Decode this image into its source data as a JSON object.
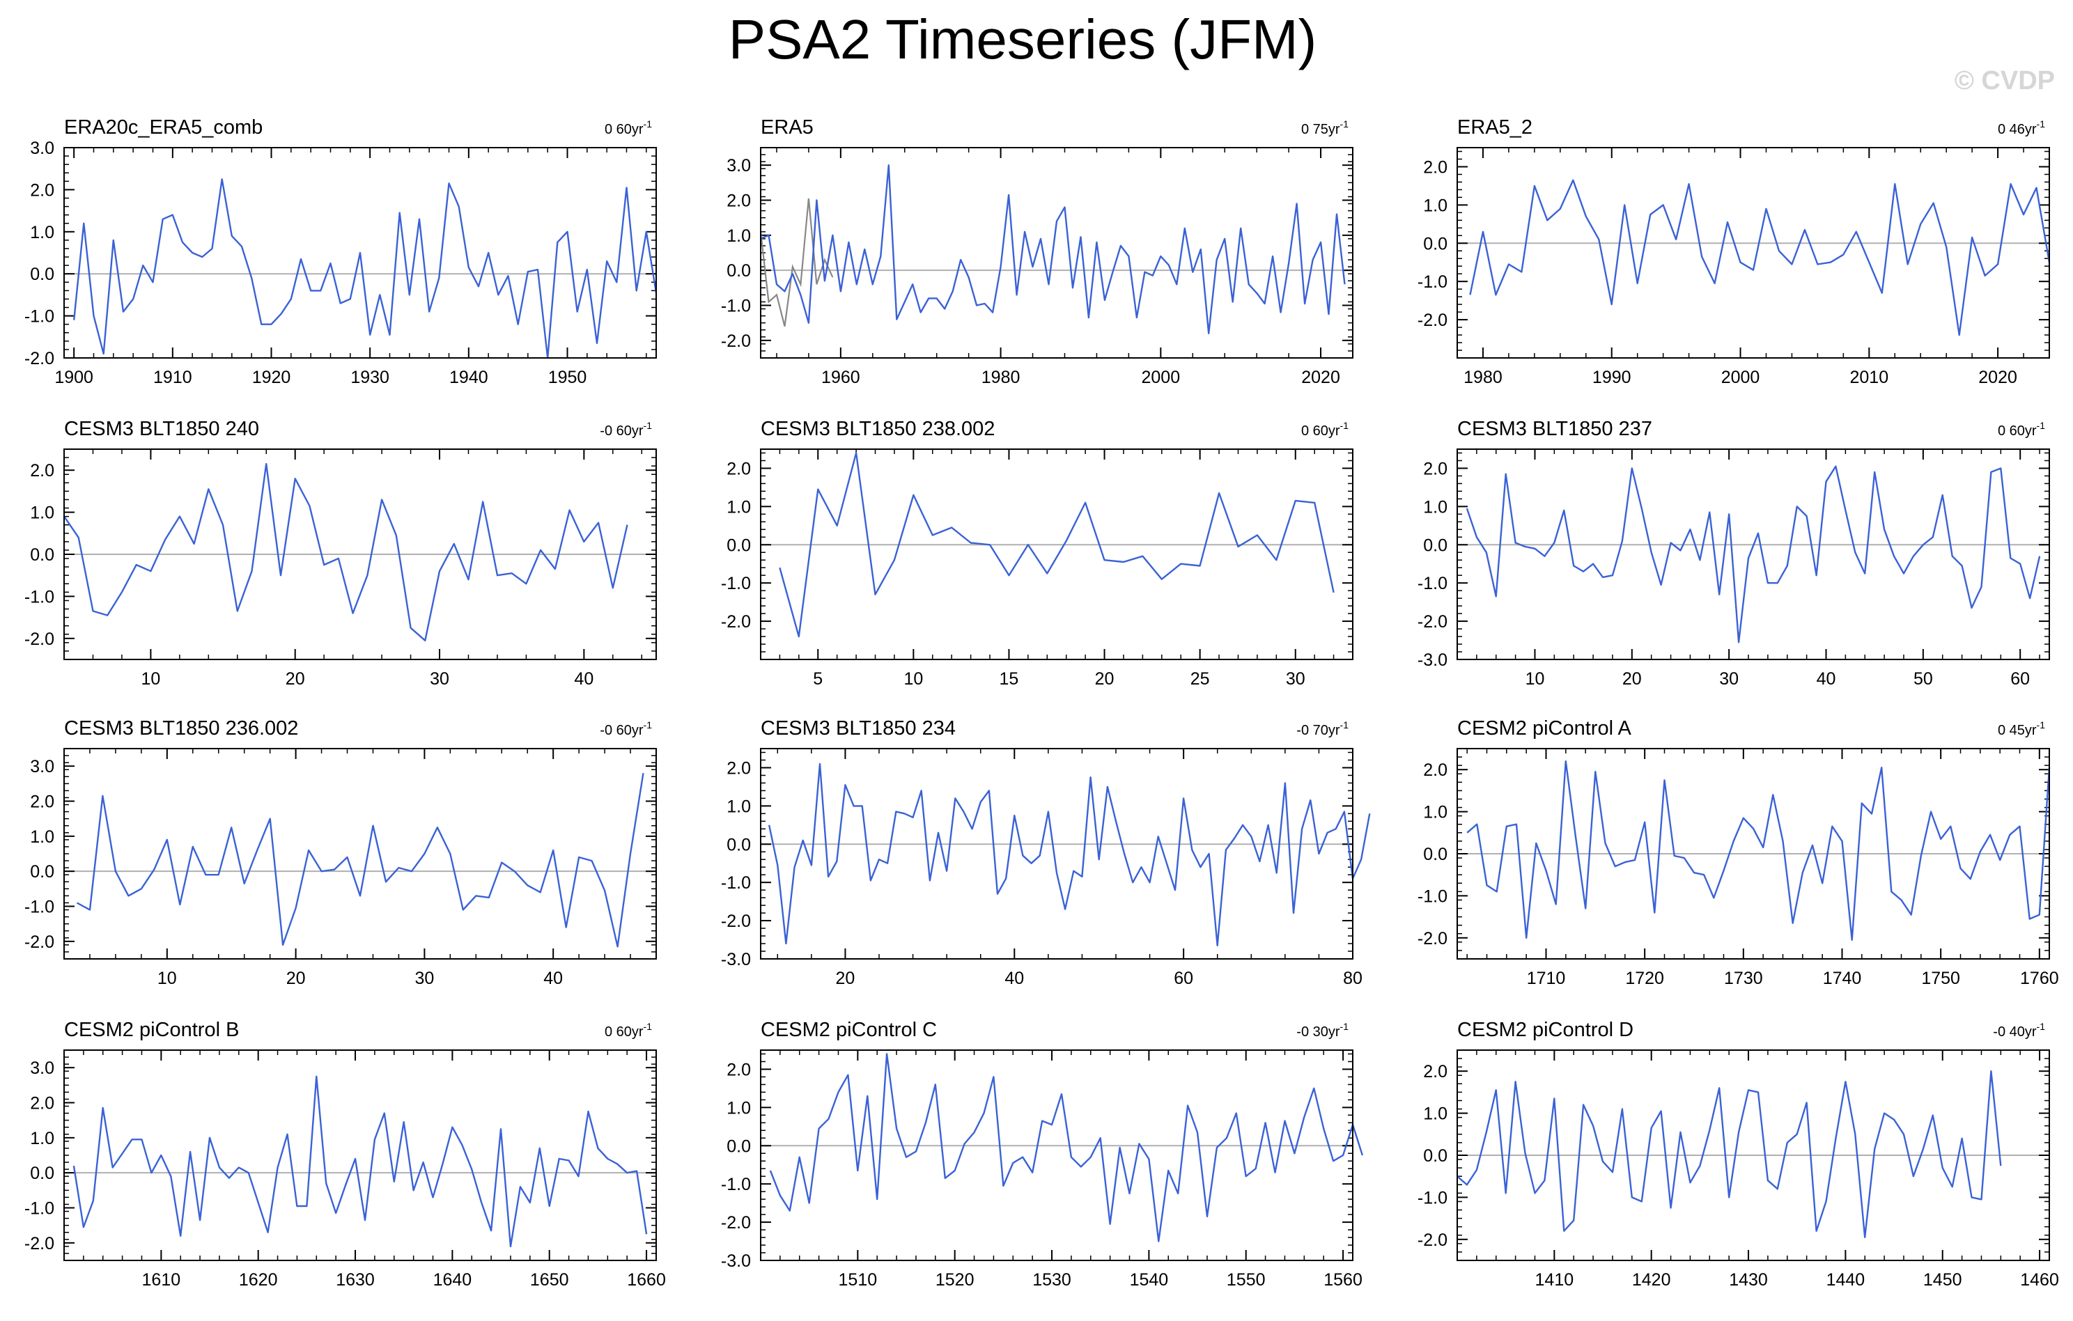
{
  "figure": {
    "title": "PSA2 Timeseries (JFM)",
    "watermark": "© CVDP"
  },
  "colors": {
    "series": "#3a62d6",
    "secondary_series": "#888888",
    "zero_line": "#b0b0b0",
    "axis": "#000000"
  },
  "chart_data": [
    {
      "type": "line",
      "title": "ERA20c_ERA5_comb",
      "trend": "0 60yr",
      "trend_unit": "-1",
      "xlim": [
        1899,
        1959
      ],
      "ylim": [
        -2,
        3
      ],
      "x_ticks": [
        1900,
        1910,
        1920,
        1930,
        1940,
        1950
      ],
      "y_ticks": [
        -2,
        -1,
        0,
        1,
        2,
        3
      ],
      "y_tick_labels": [
        "-2.0",
        "-1.0",
        "0.0",
        "1.0",
        "2.0",
        "3.0"
      ],
      "x_start": 1900,
      "values": [
        -1.1,
        1.2,
        -1.0,
        -1.9,
        0.8,
        -0.9,
        -0.6,
        0.2,
        -0.2,
        1.3,
        1.4,
        0.75,
        0.5,
        0.4,
        0.6,
        2.25,
        0.9,
        0.65,
        -0.1,
        -1.2,
        -1.2,
        -0.95,
        -0.6,
        0.35,
        -0.4,
        -0.4,
        0.25,
        -0.7,
        -0.6,
        0.5,
        -1.45,
        -0.5,
        -1.45,
        1.45,
        -0.5,
        1.3,
        -0.9,
        -0.1,
        2.15,
        1.6,
        0.15,
        -0.3,
        0.5,
        -0.5,
        -0.05,
        -1.2,
        0.05,
        0.1,
        -2.0,
        0.75,
        1.0,
        -0.9,
        0.1,
        -1.65,
        0.3,
        -0.2,
        2.05,
        -0.4,
        1.0,
        -0.45
      ]
    },
    {
      "type": "line",
      "title": "ERA5",
      "trend": "0 75yr",
      "trend_unit": "-1",
      "xlim": [
        1950,
        2024
      ],
      "ylim": [
        -2.5,
        3.5
      ],
      "x_ticks": [
        1960,
        1980,
        2000,
        2020
      ],
      "y_ticks": [
        -2,
        -1,
        0,
        1,
        2,
        3
      ],
      "y_tick_labels": [
        "-2.0",
        "-1.0",
        "0.0",
        "1.0",
        "2.0",
        "3.0"
      ],
      "x_start": 1950,
      "values": [
        0.9,
        1.0,
        -0.4,
        -0.6,
        -0.1,
        -0.7,
        -1.5,
        2.0,
        -0.3,
        1.0,
        -0.6,
        0.8,
        -0.4,
        0.6,
        -0.4,
        0.4,
        3.0,
        -1.4,
        -0.9,
        -0.4,
        -1.2,
        -0.8,
        -0.8,
        -1.1,
        -0.6,
        0.3,
        -0.2,
        -1.0,
        -0.95,
        -1.2,
        0.1,
        2.15,
        -0.7,
        1.1,
        0.1,
        0.9,
        -0.4,
        1.4,
        1.8,
        -0.5,
        0.95,
        -1.35,
        0.8,
        -0.85,
        -0.05,
        0.7,
        0.4,
        -1.35,
        -0.05,
        -0.15,
        0.4,
        0.15,
        -0.4,
        1.2,
        -0.05,
        0.6,
        -1.8,
        0.3,
        0.9,
        -0.9,
        1.2,
        -0.4,
        -0.65,
        -0.95,
        0.4,
        -1.2,
        0.2,
        1.9,
        -0.95,
        0.3,
        0.8,
        -1.25,
        1.6,
        -0.4
      ],
      "secondary_x_start": 1950,
      "secondary_values": [
        1.1,
        -0.9,
        -0.7,
        -1.6,
        0.1,
        -0.4,
        2.05,
        -0.4,
        0.3,
        -0.2
      ]
    },
    {
      "type": "line",
      "title": "ERA5_2",
      "trend": "0 46yr",
      "trend_unit": "-1",
      "xlim": [
        1978,
        2024
      ],
      "ylim": [
        -3,
        2.5
      ],
      "x_ticks": [
        1980,
        1990,
        2000,
        2010,
        2020
      ],
      "y_ticks": [
        -2,
        -1,
        0,
        1,
        2
      ],
      "y_tick_labels": [
        "-2.0",
        "-1.0",
        "0.0",
        "1.0",
        "2.0"
      ],
      "x_start": 1979,
      "values": [
        -1.35,
        0.3,
        -1.35,
        -0.55,
        -0.75,
        1.5,
        0.6,
        0.9,
        1.65,
        0.7,
        0.1,
        -1.6,
        1.0,
        -1.05,
        0.75,
        1.0,
        0.1,
        1.55,
        -0.35,
        -1.05,
        0.55,
        -0.5,
        -0.7,
        0.9,
        -0.2,
        -0.55,
        0.35,
        -0.55,
        -0.5,
        -0.3,
        0.3,
        -0.5,
        -1.3,
        1.55,
        -0.55,
        0.5,
        1.05,
        -0.1,
        -2.4,
        0.15,
        -0.85,
        -0.55,
        1.55,
        0.75,
        1.45,
        -0.5
      ]
    },
    {
      "type": "line",
      "title": "CESM3 BLT1850 240",
      "trend": "-0 60yr",
      "trend_unit": "-1",
      "xlim": [
        4,
        45
      ],
      "ylim": [
        -2.5,
        2.5
      ],
      "x_ticks": [
        10,
        20,
        30,
        40
      ],
      "y_ticks": [
        -2,
        -1,
        0,
        1,
        2
      ],
      "y_tick_labels": [
        "-2.0",
        "-1.0",
        "0.0",
        "1.0",
        "2.0"
      ],
      "x_start": 4,
      "values": [
        0.9,
        0.4,
        -1.35,
        -1.45,
        -0.9,
        -0.25,
        -0.4,
        0.35,
        0.9,
        0.25,
        1.55,
        0.7,
        -1.35,
        -0.4,
        2.15,
        -0.5,
        1.8,
        1.15,
        -0.25,
        -0.1,
        -1.4,
        -0.5,
        1.3,
        0.45,
        -1.75,
        -2.05,
        -0.4,
        0.25,
        -0.6,
        1.25,
        -0.5,
        -0.45,
        -0.7,
        0.1,
        -0.35,
        1.05,
        0.3,
        0.75,
        -0.8,
        0.7
      ]
    },
    {
      "type": "line",
      "title": "CESM3 BLT1850 238.002",
      "trend": "0 60yr",
      "trend_unit": "-1",
      "xlim": [
        2,
        33
      ],
      "ylim": [
        -3,
        2.5
      ],
      "x_ticks": [
        5,
        10,
        15,
        20,
        25,
        30
      ],
      "y_ticks": [
        -2,
        -1,
        0,
        1,
        2
      ],
      "y_tick_labels": [
        "-2.0",
        "-1.0",
        "0.0",
        "1.0",
        "2.0"
      ],
      "x_start": 3,
      "values": [
        -0.6,
        -2.4,
        1.45,
        0.5,
        2.4,
        -1.3,
        -0.4,
        1.3,
        0.25,
        0.45,
        0.05,
        0.0,
        -0.8,
        0.0,
        -0.75,
        0.1,
        1.1,
        -0.4,
        -0.45,
        -0.3,
        -0.9,
        -0.5,
        -0.55,
        1.35,
        -0.05,
        0.25,
        -0.4,
        1.15,
        1.1,
        -1.25
      ]
    },
    {
      "type": "line",
      "title": "CESM3 BLT1850 237",
      "trend": "0 60yr",
      "trend_unit": "-1",
      "xlim": [
        2,
        63
      ],
      "ylim": [
        -3,
        2.5
      ],
      "x_ticks": [
        10,
        20,
        30,
        40,
        50,
        60
      ],
      "y_ticks": [
        -3,
        -2,
        -1,
        0,
        1,
        2
      ],
      "y_tick_labels": [
        "-3.0",
        "-2.0",
        "-1.0",
        "0.0",
        "1.0",
        "2.0"
      ],
      "x_start": 3,
      "values": [
        0.95,
        0.2,
        -0.2,
        -1.35,
        1.85,
        0.05,
        -0.05,
        -0.1,
        -0.3,
        0.05,
        0.9,
        -0.55,
        -0.7,
        -0.5,
        -0.85,
        -0.8,
        0.1,
        2.0,
        0.95,
        -0.2,
        -1.05,
        0.05,
        -0.15,
        0.4,
        -0.4,
        0.85,
        -1.3,
        0.8,
        -2.55,
        -0.35,
        0.3,
        -1.0,
        -1.0,
        -0.55,
        1.0,
        0.75,
        -0.8,
        1.65,
        2.05,
        0.9,
        -0.2,
        -0.75,
        1.9,
        0.4,
        -0.3,
        -0.75,
        -0.3,
        0.0,
        0.2,
        1.3,
        -0.3,
        -0.55,
        -1.65,
        -1.1,
        1.9,
        2.0,
        -0.35,
        -0.5,
        -1.4,
        -0.3
      ]
    },
    {
      "type": "line",
      "title": "CESM3 BLT1850 236.002",
      "trend": "-0 60yr",
      "trend_unit": "-1",
      "xlim": [
        2,
        48
      ],
      "ylim": [
        -2.5,
        3.5
      ],
      "x_ticks": [
        10,
        20,
        30,
        40
      ],
      "y_ticks": [
        -2,
        -1,
        0,
        1,
        2,
        3
      ],
      "y_tick_labels": [
        "-2.0",
        "-1.0",
        "0.0",
        "1.0",
        "2.0",
        "3.0"
      ],
      "x_start": 3,
      "values": [
        -0.9,
        -1.1,
        2.15,
        0.0,
        -0.7,
        -0.5,
        0.05,
        0.9,
        -0.95,
        0.7,
        -0.1,
        -0.1,
        1.25,
        -0.35,
        0.6,
        1.5,
        -2.1,
        -1.05,
        0.6,
        0.0,
        0.05,
        0.4,
        -0.7,
        1.3,
        -0.3,
        0.1,
        0.0,
        0.5,
        1.25,
        0.5,
        -1.1,
        -0.7,
        -0.75,
        0.25,
        0.0,
        -0.4,
        -0.6,
        0.6,
        -1.6,
        0.4,
        0.3,
        -0.55,
        -2.15,
        0.5,
        2.8
      ]
    },
    {
      "type": "line",
      "title": "CESM3 BLT1850 234",
      "trend": "-0 70yr",
      "trend_unit": "-1",
      "xlim": [
        10,
        80
      ],
      "ylim": [
        -3,
        2.5
      ],
      "x_ticks": [
        20,
        40,
        60,
        80
      ],
      "y_ticks": [
        -3,
        -2,
        -1,
        0,
        1,
        2
      ],
      "y_tick_labels": [
        "-3.0",
        "-2.0",
        "-1.0",
        "0.0",
        "1.0",
        "2.0"
      ],
      "x_start": 11,
      "values": [
        0.5,
        -0.55,
        -2.6,
        -0.6,
        0.1,
        -0.55,
        2.1,
        -0.85,
        -0.45,
        1.55,
        1.0,
        1.0,
        -0.95,
        -0.4,
        -0.5,
        0.85,
        0.8,
        0.7,
        1.4,
        -0.95,
        0.3,
        -0.7,
        1.2,
        0.85,
        0.4,
        1.1,
        1.4,
        -1.3,
        -0.9,
        0.75,
        -0.3,
        -0.5,
        -0.3,
        0.85,
        -0.75,
        -1.7,
        -0.7,
        -0.85,
        1.75,
        -0.4,
        1.5,
        0.6,
        -0.25,
        -1.0,
        -0.6,
        -1.0,
        0.2,
        -0.5,
        -1.2,
        1.2,
        -0.15,
        -0.6,
        -0.25,
        -2.65,
        -0.15,
        0.15,
        0.5,
        0.2,
        -0.45,
        0.5,
        -0.75,
        1.6,
        -1.8,
        0.4,
        1.15,
        -0.25,
        0.3,
        0.4,
        0.85,
        -0.9,
        -0.4,
        0.8
      ]
    },
    {
      "type": "line",
      "title": "CESM2 piControl A",
      "trend": "0 45yr",
      "trend_unit": "-1",
      "xlim": [
        1701,
        1761
      ],
      "ylim": [
        -2.5,
        2.5
      ],
      "x_ticks": [
        1710,
        1720,
        1730,
        1740,
        1750,
        1760
      ],
      "y_ticks": [
        -2,
        -1,
        0,
        1,
        2
      ],
      "y_tick_labels": [
        "-2.0",
        "-1.0",
        "0.0",
        "1.0",
        "2.0"
      ],
      "x_start": 1702,
      "values": [
        0.5,
        0.7,
        -0.75,
        -0.9,
        0.65,
        0.7,
        -2.0,
        0.25,
        -0.4,
        -1.2,
        2.2,
        0.4,
        -1.3,
        1.95,
        0.25,
        -0.3,
        -0.2,
        -0.15,
        0.75,
        -1.4,
        1.75,
        -0.05,
        -0.1,
        -0.45,
        -0.5,
        -1.05,
        -0.4,
        0.3,
        0.85,
        0.6,
        0.15,
        1.4,
        0.3,
        -1.65,
        -0.45,
        0.2,
        -0.7,
        0.65,
        0.3,
        -2.05,
        1.2,
        0.95,
        2.05,
        -0.9,
        -1.1,
        -1.45,
        -0.05,
        1.0,
        0.35,
        0.65,
        -0.35,
        -0.6,
        0.05,
        0.45,
        -0.15,
        0.45,
        0.65,
        -1.55,
        -1.45,
        2.05
      ]
    },
    {
      "type": "line",
      "title": "CESM2 piControl B",
      "trend": "0 60yr",
      "trend_unit": "-1",
      "xlim": [
        1600,
        1661
      ],
      "ylim": [
        -2.5,
        3.5
      ],
      "x_ticks": [
        1610,
        1620,
        1630,
        1640,
        1650,
        1660
      ],
      "y_ticks": [
        -2,
        -1,
        0,
        1,
        2,
        3
      ],
      "y_tick_labels": [
        "-2.0",
        "-1.0",
        "0.0",
        "1.0",
        "2.0",
        "3.0"
      ],
      "x_start": 1601,
      "values": [
        0.2,
        -1.55,
        -0.8,
        1.85,
        0.15,
        0.55,
        0.95,
        0.95,
        0.0,
        0.5,
        -0.1,
        -1.8,
        0.6,
        -1.35,
        1.0,
        0.15,
        -0.15,
        0.15,
        0.0,
        -0.85,
        -1.7,
        0.15,
        1.1,
        -0.95,
        -0.95,
        2.75,
        -0.3,
        -1.15,
        -0.35,
        0.4,
        -1.35,
        0.95,
        1.7,
        -0.25,
        1.45,
        -0.5,
        0.3,
        -0.7,
        0.25,
        1.3,
        0.8,
        0.1,
        -0.85,
        -1.65,
        1.25,
        -2.1,
        -0.4,
        -0.85,
        0.7,
        -0.95,
        0.4,
        0.35,
        -0.1,
        1.75,
        0.7,
        0.4,
        0.25,
        0.0,
        0.05,
        -1.75
      ]
    },
    {
      "type": "line",
      "title": "CESM2 piControl C",
      "trend": "-0 30yr",
      "trend_unit": "-1",
      "xlim": [
        1500,
        1561
      ],
      "ylim": [
        -3,
        2.5
      ],
      "x_ticks": [
        1510,
        1520,
        1530,
        1540,
        1550,
        1560
      ],
      "y_ticks": [
        -3,
        -2,
        -1,
        0,
        1,
        2
      ],
      "y_tick_labels": [
        "-3.0",
        "-2.0",
        "-1.0",
        "0.0",
        "1.0",
        "2.0"
      ],
      "x_start": 1501,
      "values": [
        -0.65,
        -1.3,
        -1.7,
        -0.3,
        -1.5,
        0.45,
        0.7,
        1.4,
        1.85,
        -0.65,
        1.3,
        -1.4,
        2.4,
        0.45,
        -0.3,
        -0.15,
        0.6,
        1.6,
        -0.85,
        -0.65,
        0.05,
        0.35,
        0.85,
        1.8,
        -1.05,
        -0.45,
        -0.3,
        -0.7,
        0.65,
        0.55,
        1.35,
        -0.3,
        -0.55,
        -0.3,
        0.2,
        -2.05,
        -0.05,
        -1.25,
        0.05,
        -0.35,
        -2.5,
        -0.65,
        -1.25,
        1.05,
        0.35,
        -1.85,
        -0.05,
        0.2,
        0.85,
        -0.8,
        -0.6,
        0.6,
        -0.7,
        0.65,
        -0.2,
        0.75,
        1.5,
        0.45,
        -0.4,
        -0.25,
        0.55,
        -0.25
      ]
    },
    {
      "type": "line",
      "title": "CESM2 piControl D",
      "trend": "-0 40yr",
      "trend_unit": "-1",
      "xlim": [
        1400,
        1461
      ],
      "ylim": [
        -2.5,
        2.5
      ],
      "x_ticks": [
        1410,
        1420,
        1430,
        1440,
        1450,
        1460
      ],
      "y_ticks": [
        -2,
        -1,
        0,
        1,
        2
      ],
      "y_tick_labels": [
        "-2.0",
        "-1.0",
        "0.0",
        "1.0",
        "2.0"
      ],
      "x_start": 1400,
      "values": [
        -0.5,
        -0.7,
        -0.35,
        0.55,
        1.55,
        -0.9,
        1.75,
        0.05,
        -0.9,
        -0.6,
        1.35,
        -1.8,
        -1.55,
        1.2,
        0.7,
        -0.15,
        -0.4,
        1.1,
        -1.0,
        -1.1,
        0.65,
        1.05,
        -1.25,
        0.55,
        -0.65,
        -0.25,
        0.6,
        1.6,
        -1.0,
        0.55,
        1.55,
        1.5,
        -0.6,
        -0.8,
        0.3,
        0.5,
        1.25,
        -1.8,
        -1.1,
        0.4,
        1.75,
        0.5,
        -1.95,
        0.15,
        1.0,
        0.85,
        0.5,
        -0.5,
        0.15,
        0.95,
        -0.3,
        -0.75,
        0.4,
        -1.0,
        -1.05,
        2.0,
        -0.25
      ]
    }
  ]
}
